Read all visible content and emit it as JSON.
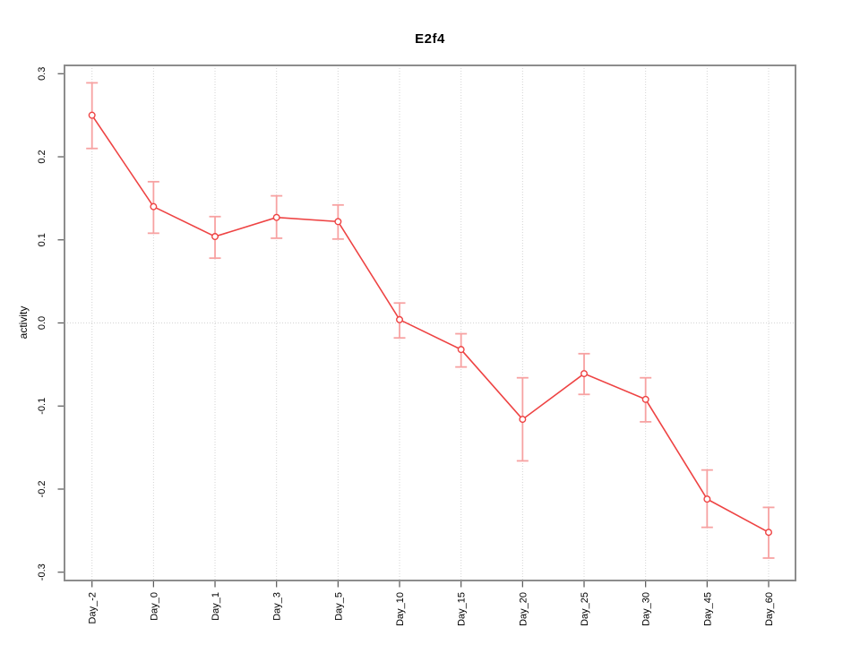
{
  "chart_data": {
    "type": "line",
    "title": "E2f4",
    "xlabel": "",
    "ylabel": "activity",
    "categories": [
      "Day_-2",
      "Day_0",
      "Day_1",
      "Day_3",
      "Day_5",
      "Day_10",
      "Day_15",
      "Day_20",
      "Day_25",
      "Day_30",
      "Day_45",
      "Day_60"
    ],
    "series": [
      {
        "name": "E2f4 activity",
        "values": [
          0.25,
          0.14,
          0.104,
          0.127,
          0.122,
          0.004,
          -0.032,
          -0.116,
          -0.061,
          -0.092,
          -0.212,
          -0.252
        ],
        "error_high": [
          0.289,
          0.17,
          0.128,
          0.153,
          0.142,
          0.024,
          -0.013,
          -0.066,
          -0.037,
          -0.066,
          -0.177,
          -0.222
        ],
        "error_low": [
          0.21,
          0.108,
          0.078,
          0.102,
          0.101,
          -0.018,
          -0.053,
          -0.166,
          -0.086,
          -0.119,
          -0.246,
          -0.283
        ]
      }
    ],
    "ylim": [
      -0.31,
      0.31
    ],
    "ytick_values": [
      0.3,
      0.2,
      0.1,
      0.0,
      -0.1,
      -0.2,
      -0.3
    ],
    "ytick_labels": [
      "0.3",
      "0.2",
      "0.1",
      "0.0",
      "-0.1",
      "-0.2",
      "-0.3"
    ],
    "grid": {
      "vertical_at_each_category": true,
      "horizontal_zero_line": true,
      "style": "dotted"
    },
    "legend": null,
    "colors": {
      "line": "#ee4343",
      "point_stroke": "#ee4343",
      "point_fill": "#ffffff",
      "error_bar": "#f7a2a2",
      "grid": "#d4d4d4",
      "box": "#8c8c8c",
      "tick": "#555555",
      "text": "#000000",
      "background": "#ffffff"
    }
  }
}
